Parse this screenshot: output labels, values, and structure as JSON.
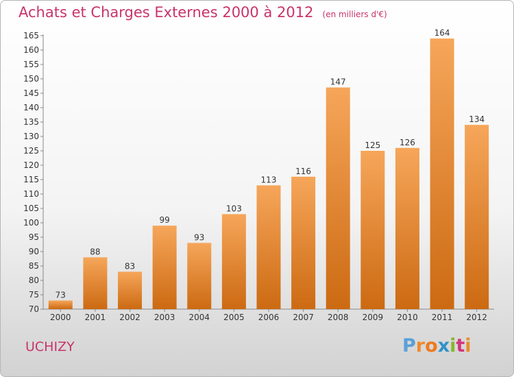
{
  "title": "Achats et Charges Externes 2000 à 2012",
  "unit_note": "(en milliers d'€)",
  "place": "UCHIZY",
  "logo": {
    "letters": [
      "P",
      "r",
      "o",
      "x",
      "i",
      "t",
      "i"
    ],
    "colors": [
      "#5aa0d8",
      "#f08a2c",
      "#ee7a1e",
      "#2f93c9",
      "#86b72f",
      "#d2357a",
      "#e88b2a"
    ]
  },
  "colors": {
    "bar_top": "#f6a65a",
    "bar_bottom": "#cc6a12",
    "text_accent": "#c8336a",
    "axis_text": "#333333"
  },
  "chart_data": {
    "type": "bar",
    "title": "Achats et Charges Externes 2000 à 2012",
    "subtitle": "(en milliers d'€)",
    "categories": [
      "2000",
      "2001",
      "2002",
      "2003",
      "2004",
      "2005",
      "2006",
      "2007",
      "2008",
      "2009",
      "2010",
      "2011",
      "2012"
    ],
    "values": [
      73,
      88,
      83,
      99,
      93,
      103,
      113,
      116,
      147,
      125,
      126,
      164,
      134
    ],
    "ylim": [
      70,
      165
    ],
    "yticks": [
      70,
      75,
      80,
      85,
      90,
      95,
      100,
      105,
      110,
      115,
      120,
      125,
      130,
      135,
      140,
      145,
      150,
      155,
      160,
      165
    ],
    "grid": false,
    "legend": "none"
  }
}
